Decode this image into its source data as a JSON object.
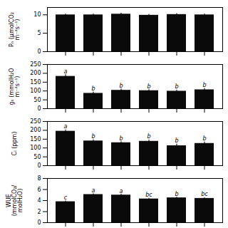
{
  "chart_data": [
    {
      "type": "bar",
      "ylabel": "Pₙ (μmolCO₂\nm⁻²s⁻¹)",
      "categories": [
        null,
        null,
        null,
        null,
        null,
        null
      ],
      "values": [
        10.0,
        10.0,
        10.2,
        9.9,
        10.1,
        10.0
      ],
      "errors": [
        0.25,
        0.25,
        0.25,
        0.25,
        0.25,
        0.25
      ],
      "color": "#0a0a0a",
      "ylim": [
        0,
        12
      ],
      "yticks": [
        0,
        5,
        10
      ]
    },
    {
      "type": "bar",
      "ylabel": "gₛ (mmolH₂O\nm⁻²s⁻¹)",
      "categories": [
        null,
        null,
        null,
        null,
        null,
        null
      ],
      "values": [
        183,
        87,
        104,
        102,
        99,
        107
      ],
      "errors": [
        10,
        8,
        8,
        6,
        7,
        8
      ],
      "annotations": [
        "a",
        "b",
        "b",
        "b",
        "b",
        "b"
      ],
      "color": "#0a0a0a",
      "ylim": [
        0,
        250
      ],
      "yticks": [
        0,
        50,
        100,
        150,
        200,
        250
      ]
    },
    {
      "type": "bar",
      "ylabel": "Cᵢ (ppm)",
      "categories": [
        null,
        null,
        null,
        null,
        null,
        null
      ],
      "values": [
        195,
        140,
        130,
        138,
        113,
        126
      ],
      "errors": [
        8,
        7,
        6,
        8,
        10,
        9
      ],
      "annotations": [
        "a",
        "b",
        "b",
        "b",
        "b",
        "b"
      ],
      "color": "#0a0a0a",
      "ylim": [
        0,
        250
      ],
      "yticks": [
        0,
        50,
        100,
        150,
        200,
        250
      ]
    },
    {
      "type": "bar",
      "ylabel": "WUE\n(mmolCO₂/\nmolH₂O)",
      "categories": [
        null,
        null,
        null,
        null,
        null,
        null
      ],
      "values": [
        3.8,
        5.1,
        5.0,
        4.3,
        4.5,
        4.4
      ],
      "errors": [
        0.15,
        0.15,
        0.15,
        0.12,
        0.12,
        0.12
      ],
      "annotations": [
        "c",
        "a",
        "a",
        "bc",
        "b",
        "bc"
      ],
      "color": "#0a0a0a",
      "ylim": [
        0,
        8
      ],
      "yticks": [
        0,
        2,
        4,
        6,
        8
      ]
    }
  ]
}
